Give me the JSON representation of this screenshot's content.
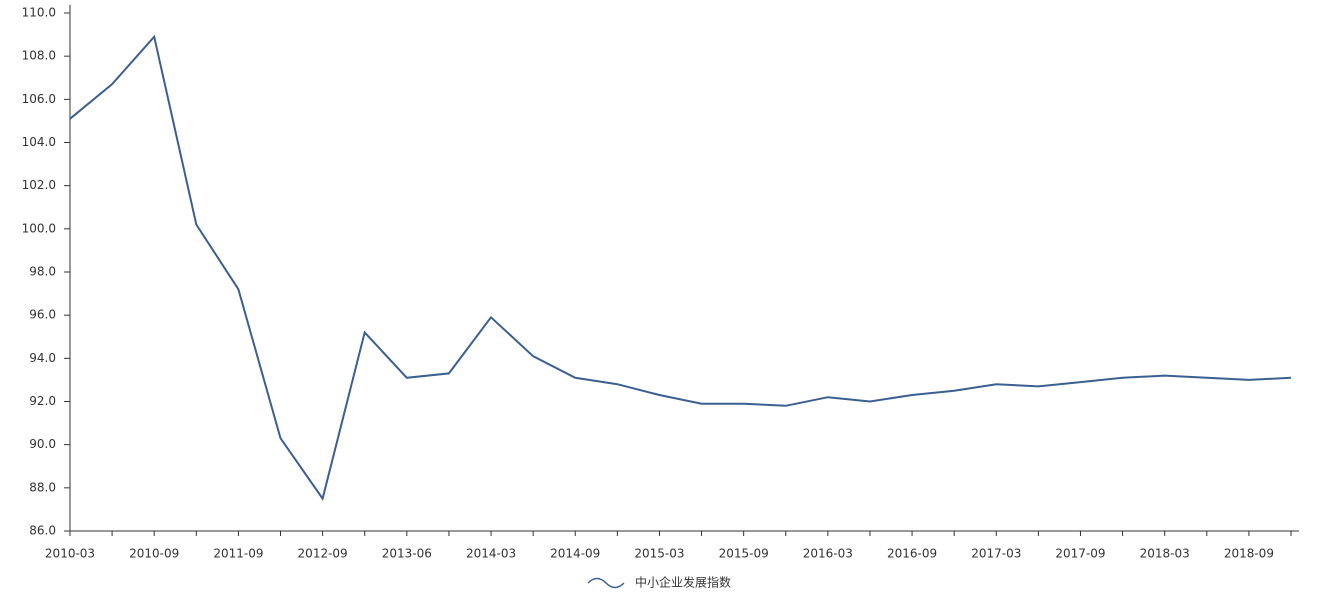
{
  "chart_data": {
    "type": "line",
    "categories": [
      "2010-03",
      null,
      "2010-09",
      null,
      "2011-09",
      null,
      "2012-09",
      null,
      "2013-06",
      null,
      "2014-03",
      null,
      "2014-09",
      null,
      "2015-03",
      null,
      "2015-09",
      null,
      "2016-03",
      null,
      "2016-09",
      null,
      "2017-03",
      null,
      "2017-09",
      null,
      "2018-03",
      null,
      "2018-09",
      null
    ],
    "series": [
      {
        "name": "中小企业发展指数",
        "color": "#3a5f92",
        "values": [
          105.1,
          106.7,
          108.9,
          100.2,
          97.2,
          90.3,
          87.5,
          95.2,
          93.1,
          93.3,
          95.9,
          94.1,
          93.1,
          92.8,
          92.3,
          91.9,
          91.9,
          91.8,
          92.2,
          92.0,
          92.3,
          92.5,
          92.8,
          92.7,
          92.9,
          93.1,
          93.2,
          93.1,
          93.0,
          93.1
        ]
      }
    ],
    "ylim": [
      86,
      110
    ],
    "yticks": [
      {
        "value": 86,
        "label": "86.0"
      },
      {
        "value": 88,
        "label": "88.0"
      },
      {
        "value": 90,
        "label": "90.0"
      },
      {
        "value": 92,
        "label": "92.0"
      },
      {
        "value": 94,
        "label": "94.0"
      },
      {
        "value": 96,
        "label": "96.0"
      },
      {
        "value": 98,
        "label": "98.0"
      },
      {
        "value": 100,
        "label": "100.0"
      },
      {
        "value": 102,
        "label": "102.0"
      },
      {
        "value": 104,
        "label": "104.0"
      },
      {
        "value": 106,
        "label": "106.0"
      },
      {
        "value": 108,
        "label": "108.0"
      },
      {
        "value": 110,
        "label": "110.0"
      }
    ],
    "legend": "bottom"
  }
}
